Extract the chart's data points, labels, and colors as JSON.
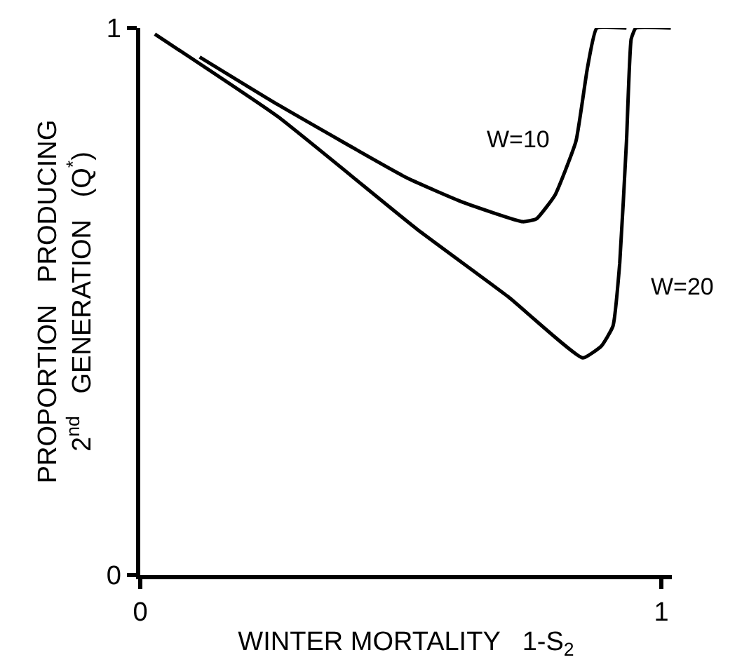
{
  "chart_data": {
    "type": "line",
    "xlabel": "WINTER MORTALITY   1-S$_{2}$",
    "ylabel": "PROPORTION   PRODUCING\n2$^{nd}$   GENERATION   (Q$^{*}$)",
    "xlim": [
      0,
      1.02
    ],
    "xticks": [
      0,
      1
    ],
    "ylim": [
      0,
      1
    ],
    "yticks": [
      0,
      1
    ],
    "grid": false,
    "legend": false,
    "marker": "none",
    "line_style": "solid",
    "series": [
      {
        "name": "W=10",
        "color": "#000000",
        "x": [
          0.114,
          0.264,
          0.512,
          0.618,
          0.734,
          0.76,
          0.796,
          0.836,
          0.858,
          0.876,
          0.933
        ],
        "values": [
          0.947,
          0.86,
          0.726,
          0.682,
          0.646,
          0.651,
          0.695,
          0.793,
          0.927,
          1,
          1
        ]
      },
      {
        "name": "W=20",
        "color": "#000000",
        "x": [
          0.028,
          0.264,
          0.53,
          0.707,
          0.849,
          0.885,
          0.907,
          0.92,
          0.933,
          0.942,
          0.951,
          1.018
        ],
        "values": [
          0.989,
          0.838,
          0.633,
          0.508,
          0.397,
          0.419,
          0.455,
          0.57,
          0.793,
          0.98,
          1,
          1
        ]
      }
    ]
  }
}
